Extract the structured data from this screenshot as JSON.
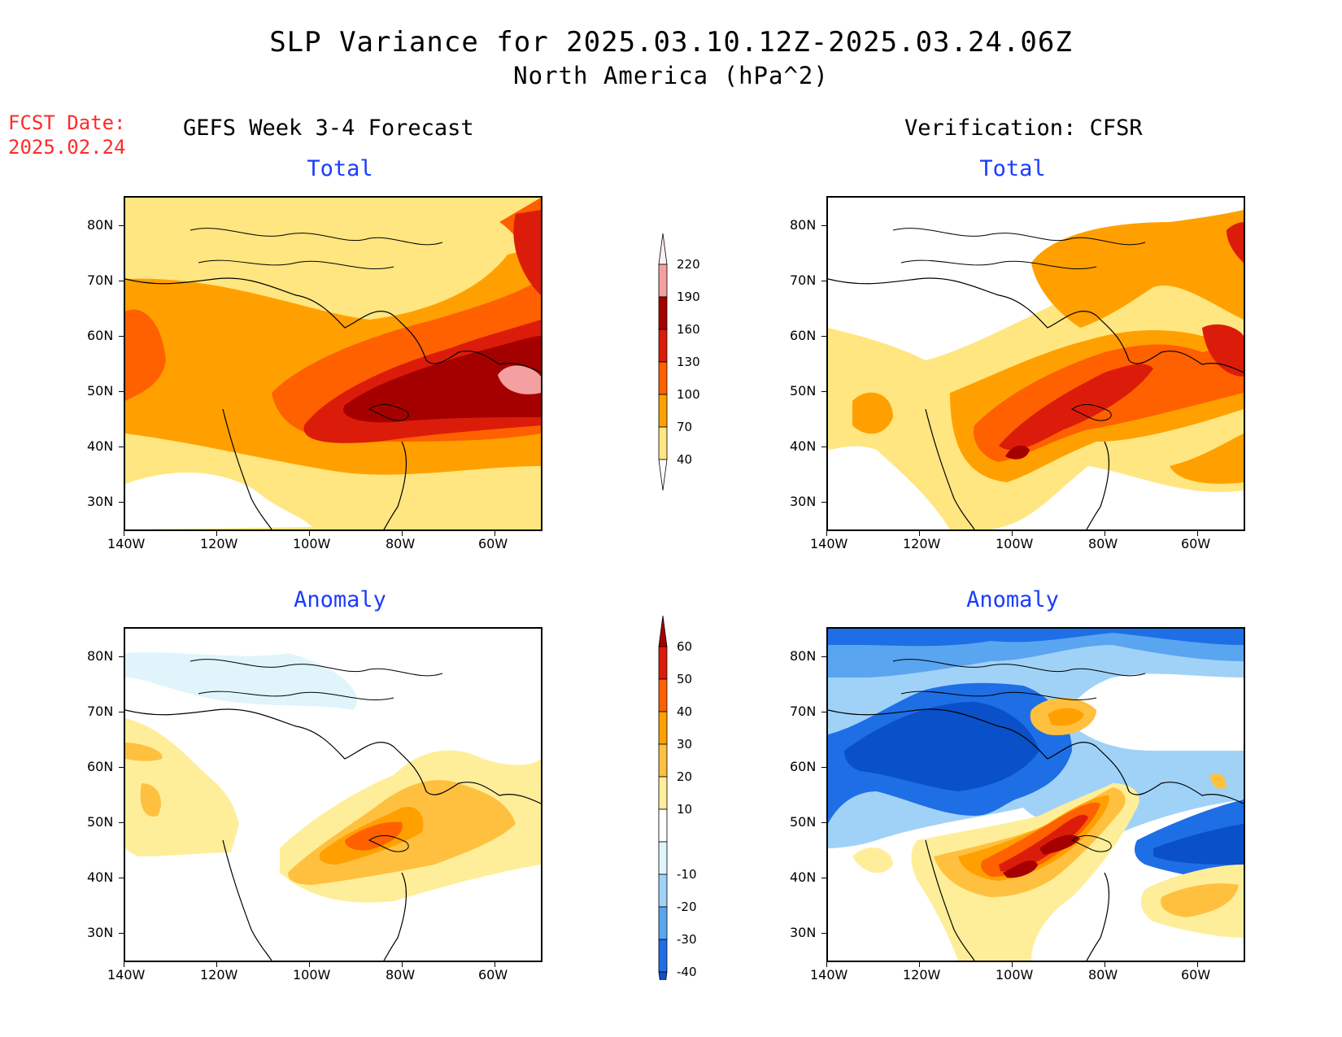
{
  "header": {
    "title_line1": "SLP Variance for 2025.03.10.12Z-2025.03.24.06Z",
    "title_line2": "North America (hPa^2)",
    "fcst_label": "FCST Date:",
    "fcst_date": "2025.02.24",
    "left_column": "GEFS Week 3-4 Forecast",
    "right_column": "Verification: CFSR"
  },
  "panels": {
    "top_left_title": "Total",
    "top_right_title": "Total",
    "bottom_left_title": "Anomaly",
    "bottom_right_title": "Anomaly"
  },
  "axes": {
    "lat_labels": [
      "80N",
      "70N",
      "60N",
      "50N",
      "40N",
      "30N"
    ],
    "lon_labels": [
      "140W",
      "120W",
      "100W",
      "80W",
      "60W"
    ]
  },
  "colorbar_total": {
    "levels": [
      "220",
      "190",
      "160",
      "130",
      "100",
      "70",
      "40"
    ],
    "colors": [
      "#fff0f0",
      "#f4a0a0",
      "#a50000",
      "#dc1c0a",
      "#ff6000",
      "#ffa000",
      "#ffe680"
    ]
  },
  "colorbar_anomaly": {
    "levels": [
      "60",
      "50",
      "40",
      "30",
      "20",
      "10",
      "-10",
      "-20",
      "-30",
      "-40"
    ],
    "colors": [
      "#a50000",
      "#dc1c0a",
      "#ff6000",
      "#ffa000",
      "#ffc040",
      "#ffee99",
      "#ffffff",
      "#dff5fb",
      "#a0d2f8",
      "#5aa5f0",
      "#1e6ee6",
      "#0a50c8"
    ]
  },
  "chart_data": {
    "type": "heatmap",
    "map_extent": {
      "lon": [
        -140,
        -50
      ],
      "lat": [
        25,
        85
      ]
    },
    "units": "hPa^2"
  }
}
